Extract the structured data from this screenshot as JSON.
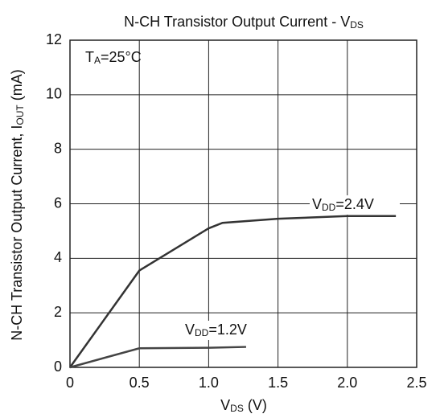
{
  "chart_data": {
    "type": "line",
    "title": [
      "N-CH Transistor Output Current - V",
      "DS"
    ],
    "xlabel": [
      "V",
      "DS",
      " (V)"
    ],
    "ylabel": [
      "N-CH Transistor Output Current, I",
      "OUT",
      " (mA)"
    ],
    "annotation": [
      "T",
      "A",
      "=25°C"
    ],
    "xlim": [
      0,
      2.5
    ],
    "xticks": [
      0,
      {
        "value": 0.5,
        "label": "0.5"
      },
      {
        "value": 1.0,
        "label": "1.0"
      },
      {
        "value": 1.5,
        "label": "1.5"
      },
      {
        "value": 2.0,
        "label": "2.0"
      },
      {
        "value": 2.5,
        "label": "2.5"
      }
    ],
    "ylim": [
      0,
      12
    ],
    "yticks": [
      0,
      2,
      4,
      6,
      8,
      10,
      12
    ],
    "grid": true,
    "series": [
      {
        "name": [
          "V",
          "DD",
          "=2.4V"
        ],
        "color": "#333333",
        "x": [
          0,
          0.5,
          1.0,
          1.1,
          1.5,
          2.0,
          2.35
        ],
        "values": [
          0,
          3.55,
          5.1,
          5.3,
          5.45,
          5.55,
          5.55
        ]
      },
      {
        "name": [
          "V",
          "DD",
          "=1.2V"
        ],
        "color": "#444444",
        "x": [
          0,
          0.5,
          1.0,
          1.27
        ],
        "values": [
          0,
          0.7,
          0.72,
          0.75
        ]
      }
    ]
  }
}
